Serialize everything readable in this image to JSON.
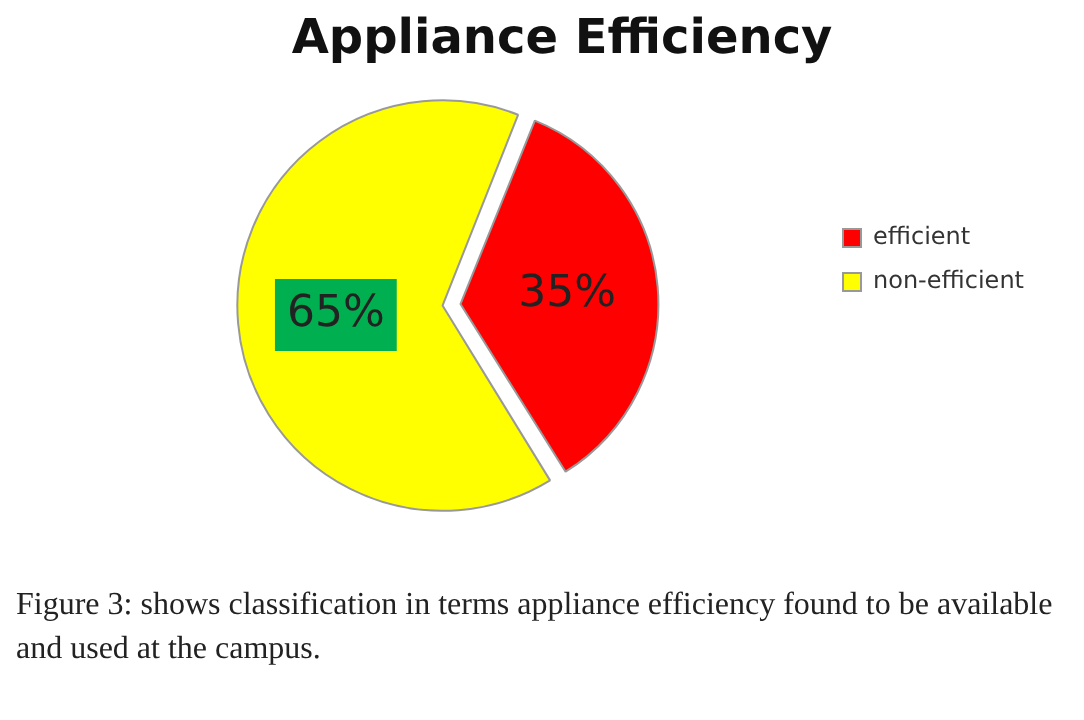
{
  "chart_data": {
    "type": "pie",
    "title": "Appliance Efficiency",
    "categories": [
      "efficient",
      "non-efficient"
    ],
    "values": [
      35,
      65
    ],
    "colors": [
      "#ff0000",
      "#ffff00"
    ],
    "value_labels": [
      "35%",
      "65%"
    ],
    "legend": "right",
    "annotations": [
      "Figure 3: shows classification in terms appliance efficiency found to be available and used at the campus."
    ]
  }
}
